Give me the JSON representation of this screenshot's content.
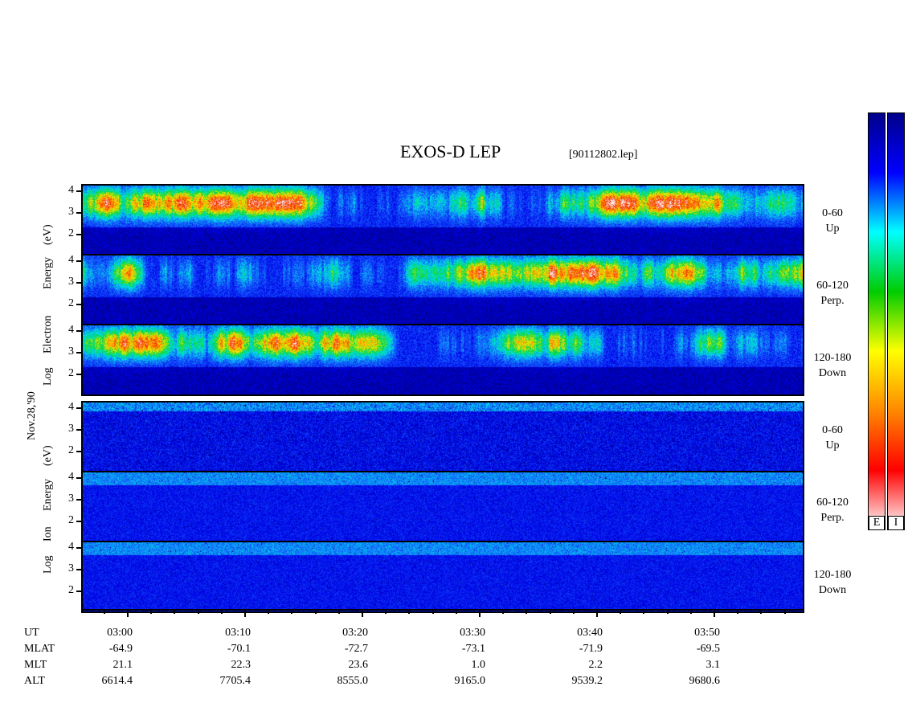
{
  "title": "EXOS-D LEP",
  "filename": "[90112802.lep]",
  "date_label": "Nov.28,'90",
  "electron_group": {
    "axis_words": [
      "Log",
      "Electron",
      "Energy",
      "(eV)"
    ],
    "panels": [
      {
        "angle": "0-60",
        "direction": "Up"
      },
      {
        "angle": "60-120",
        "direction": "Perp."
      },
      {
        "angle": "120-180",
        "direction": "Down"
      }
    ]
  },
  "ion_group": {
    "axis_words": [
      "Log",
      "Ion",
      "Energy",
      "(eV)"
    ],
    "panels": [
      {
        "angle": "0-60",
        "direction": "Up"
      },
      {
        "angle": "60-120",
        "direction": "Perp."
      },
      {
        "angle": "120-180",
        "direction": "Down"
      }
    ]
  },
  "colorbars": [
    {
      "label": "E"
    },
    {
      "label": "I"
    }
  ],
  "chart_data": {
    "type": "heatmap",
    "title": "EXOS-D LEP",
    "y_ticks": [
      "4",
      "3",
      "2"
    ],
    "ylabel_electron": "Log Electron Energy (eV)",
    "ylabel_ion": "Log Ion Energy (eV)",
    "x_ticks": [
      "03:00",
      "03:10",
      "03:20",
      "03:30",
      "03:40",
      "03:50"
    ],
    "colorscale": [
      "#00008b",
      "#0000ff",
      "#00ffff",
      "#00cc00",
      "#ffff00",
      "#ff8800",
      "#ff0000",
      "#ffffff"
    ],
    "ephemeris": {
      "labels": [
        "UT",
        "MLAT",
        "MLT",
        "ALT"
      ],
      "rows": [
        {
          "UT": "03:00",
          "MLAT": "-64.9",
          "MLT": "21.1",
          "ALT": "6614.4"
        },
        {
          "UT": "03:10",
          "MLAT": "-70.1",
          "MLT": "22.3",
          "ALT": "7705.4"
        },
        {
          "UT": "03:20",
          "MLAT": "-72.7",
          "MLT": "23.6",
          "ALT": "8555.0"
        },
        {
          "UT": "03:30",
          "MLAT": "-73.1",
          "MLT": "1.0",
          "ALT": "9165.0"
        },
        {
          "UT": "03:40",
          "MLAT": "-71.9",
          "MLT": "2.2",
          "ALT": "9539.2"
        },
        {
          "UT": "03:50",
          "MLAT": "-69.5",
          "MLT": "3.1",
          "ALT": "9680.6"
        }
      ]
    }
  }
}
